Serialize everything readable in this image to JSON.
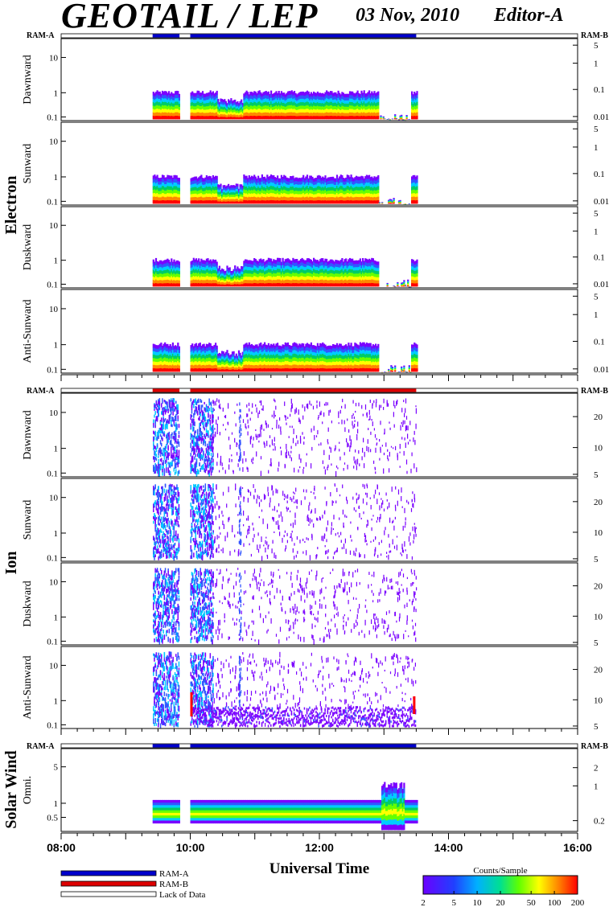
{
  "header": {
    "title": "GEOTAIL / LEP",
    "date": "03 Nov, 2010",
    "editor": "Editor-A"
  },
  "chart_data": {
    "type": "heatmap",
    "xlabel": "Universal Time",
    "x_ticks": [
      "08:00",
      "10:00",
      "12:00",
      "14:00",
      "16:00"
    ],
    "xlim": [
      "08:00",
      "16:00"
    ],
    "data_coverage": {
      "segments": [
        [
          "09:25",
          "09:50"
        ],
        [
          "10:00",
          "13:30"
        ]
      ],
      "mode_bar_electron": "RAM-A",
      "mode_bar_ion": "RAM-B",
      "mode_bar_solar_wind": "RAM-A"
    },
    "colorbar": {
      "label": "Counts/Sample",
      "ticks": [
        "2",
        "5",
        "10",
        "20",
        "50",
        "100",
        "200"
      ],
      "scale": "log",
      "range": [
        2,
        200
      ]
    },
    "groups": [
      {
        "name": "Electron",
        "left_axis_tag": "RAM-A",
        "right_axis_tag": "RAM-B",
        "panels": [
          {
            "name": "Dawnward",
            "left_ticks": [
              "10",
              "1",
              "0.1"
            ],
            "right_ticks": [
              "5",
              "1",
              "0.1",
              "0.01"
            ]
          },
          {
            "name": "Sunward",
            "left_ticks": [
              "10",
              "1",
              "0.1"
            ],
            "right_ticks": [
              "5",
              "1",
              "0.1",
              "0.01"
            ]
          },
          {
            "name": "Duskward",
            "left_ticks": [
              "10",
              "1",
              "0.1"
            ],
            "right_ticks": [
              "5",
              "1",
              "0.1",
              "0.01"
            ]
          },
          {
            "name": "Anti-Sunward",
            "left_ticks": [
              "10",
              "1",
              "0.1"
            ],
            "right_ticks": [
              "5",
              "1",
              "0.1",
              "0.01"
            ]
          }
        ]
      },
      {
        "name": "Ion",
        "left_axis_tag": "RAM-A",
        "right_axis_tag": "RAM-B",
        "panels": [
          {
            "name": "Dawnward",
            "left_ticks": [
              "10",
              "1",
              "0.1"
            ],
            "right_ticks": [
              "20",
              "10",
              "5"
            ]
          },
          {
            "name": "Sunward",
            "left_ticks": [
              "10",
              "1",
              "0.1"
            ],
            "right_ticks": [
              "20",
              "10",
              "5"
            ]
          },
          {
            "name": "Duskward",
            "left_ticks": [
              "10",
              "1",
              "0.1"
            ],
            "right_ticks": [
              "20",
              "10",
              "5"
            ]
          },
          {
            "name": "Anti-Sunward",
            "left_ticks": [
              "10",
              "1",
              "0.1"
            ],
            "right_ticks": [
              "20",
              "10",
              "5"
            ]
          }
        ]
      },
      {
        "name": "Solar Wind",
        "left_axis_tag": "RAM-A",
        "right_axis_tag": "RAM-B",
        "panels": [
          {
            "name": "Omni.",
            "left_ticks": [
              "5",
              "1",
              "0.5"
            ],
            "right_ticks": [
              "2",
              "1",
              "0.2"
            ]
          }
        ]
      }
    ]
  },
  "legend": {
    "items": [
      {
        "label": "RAM-A",
        "color": "#0000cc"
      },
      {
        "label": "RAM-B",
        "color": "#dd0000"
      },
      {
        "label": "Lack of Data",
        "color": "#ffffff"
      }
    ]
  }
}
